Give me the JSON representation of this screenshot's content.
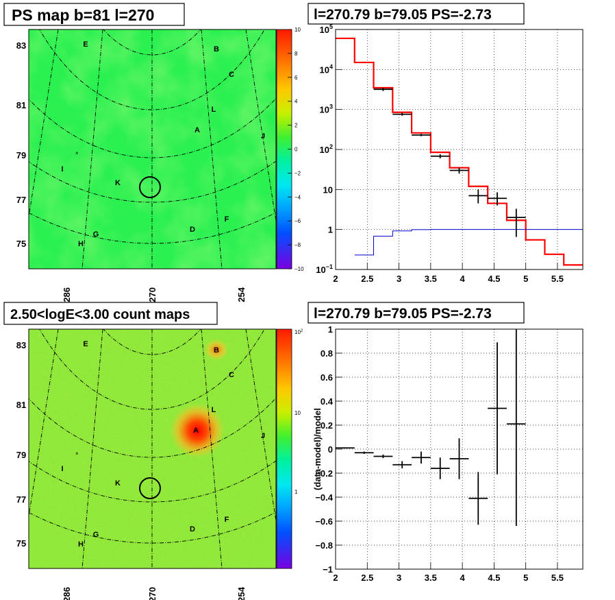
{
  "colors": {
    "map_bg": "#22f04a",
    "map_mid": "#9ef028",
    "hot": "#ff1010",
    "data": "#000000",
    "model": "#ff0000",
    "background_model": "#0000cc"
  },
  "panels": {
    "tl": {
      "title": "PS map b=81 l=270",
      "y_ticks": [
        "83",
        "81",
        "79",
        "77",
        "75"
      ],
      "x_ticks": [
        "286",
        "270",
        "254"
      ],
      "scale_ticks": [
        "10",
        "8",
        "6",
        "4",
        "2",
        "0",
        "−2",
        "−4",
        "−6",
        "−8",
        "−10"
      ]
    },
    "bl": {
      "title": "2.50<logE<3.00 count maps",
      "y_ticks": [
        "83",
        "81",
        "79",
        "77",
        "75"
      ],
      "x_ticks": [
        "286",
        "270",
        "254"
      ],
      "scale_ticks": [
        "10",
        "1"
      ],
      "scale_top_base": "10",
      "scale_top_exp": "2"
    },
    "tr": {
      "title": "l=270.79 b=79.05 PS=-2.73"
    },
    "br": {
      "title": "l=270.79 b=79.05 PS=-2.73"
    }
  },
  "sources": [
    "E",
    "B",
    "C",
    "L",
    "A",
    "J",
    "I",
    "K",
    "F",
    "D",
    "G",
    "H"
  ],
  "chart_data": [
    {
      "type": "line",
      "title": "l=270.79 b=79.05 PS=-2.73",
      "xlabel": "",
      "ylabel": "",
      "xlim": [
        2,
        5.9
      ],
      "ylim": [
        0.1,
        100000
      ],
      "log_y": true,
      "grid": true,
      "x_ticks": [
        "2",
        "2.5",
        "3",
        "3.5",
        "4",
        "4.5",
        "5",
        "5.5"
      ],
      "y_ticks": [
        {
          "base": "10",
          "exp": "5"
        },
        {
          "base": "10",
          "exp": "4"
        },
        {
          "base": "10",
          "exp": "3"
        },
        {
          "base": "10",
          "exp": "2"
        },
        {
          "base": "10",
          "exp": ""
        },
        {
          "base": "1",
          "exp": ""
        },
        {
          "base": "10",
          "exp": "−1"
        }
      ],
      "series": [
        {
          "style": "step",
          "color": "#ff0000",
          "edges": [
            2,
            2.3,
            2.6,
            2.9,
            3.2,
            3.5,
            3.8,
            4.1,
            4.4,
            4.7,
            5.0,
            5.3,
            5.6,
            5.9
          ],
          "values": [
            60000,
            15000,
            3500,
            850,
            260,
            85,
            35,
            12,
            4.5,
            1.7,
            0.55,
            0.24,
            0.13
          ]
        },
        {
          "style": "step",
          "color": "#0000cc",
          "edges": [
            2.3,
            2.6,
            2.9,
            3.2,
            3.5,
            3.8,
            4.1,
            4.4,
            4.7,
            5.0,
            5.3,
            5.6,
            5.9
          ],
          "values": [
            0.23,
            0.68,
            0.92,
            0.99,
            1,
            1,
            1,
            1,
            1,
            1,
            1,
            1
          ]
        },
        {
          "style": "errorbar",
          "color": "#000000",
          "x": [
            2.75,
            3.05,
            3.35,
            3.65,
            3.95,
            4.25,
            4.55,
            4.85
          ],
          "xerr": [
            0.15,
            0.15,
            0.15,
            0.15,
            0.15,
            0.15,
            0.15,
            0.15
          ],
          "y": [
            3200,
            760,
            230,
            68,
            30,
            7,
            6,
            2
          ],
          "ylo": [
            2900,
            700,
            215,
            60,
            25,
            4.5,
            4.0,
            0.65
          ],
          "yhi": [
            3500,
            820,
            245,
            76,
            35,
            10,
            8.5,
            3.3
          ]
        }
      ]
    },
    {
      "type": "scatter",
      "title": "l=270.79 b=79.05 PS=-2.73",
      "xlabel": "",
      "ylabel": "(data-model)/model",
      "xlim": [
        2,
        5.9
      ],
      "ylim": [
        -1,
        1
      ],
      "grid": true,
      "x_ticks": [
        "2",
        "2.5",
        "3",
        "3.5",
        "4",
        "4.5",
        "5",
        "5.5"
      ],
      "y_ticks": [
        "1",
        "0.8",
        "0.6",
        "0.4",
        "0.2",
        "0",
        "−0.2",
        "−0.4",
        "−0.6",
        "−0.8",
        "−1"
      ],
      "x": [
        2.15,
        2.45,
        2.75,
        3.05,
        3.35,
        3.65,
        3.95,
        4.25,
        4.55,
        4.85
      ],
      "xerr": [
        0.15,
        0.15,
        0.15,
        0.15,
        0.15,
        0.15,
        0.15,
        0.15,
        0.15,
        0.15
      ],
      "y": [
        0.01,
        -0.03,
        -0.06,
        -0.13,
        -0.07,
        -0.16,
        -0.08,
        -0.41,
        0.34,
        0.21
      ],
      "ylo": [
        0.005,
        -0.04,
        -0.075,
        -0.16,
        -0.12,
        -0.25,
        -0.25,
        -0.63,
        -0.21,
        -0.64
      ],
      "yhi": [
        0.015,
        -0.02,
        -0.045,
        -0.1,
        -0.02,
        -0.07,
        0.09,
        -0.19,
        0.89,
        1.0
      ]
    }
  ]
}
